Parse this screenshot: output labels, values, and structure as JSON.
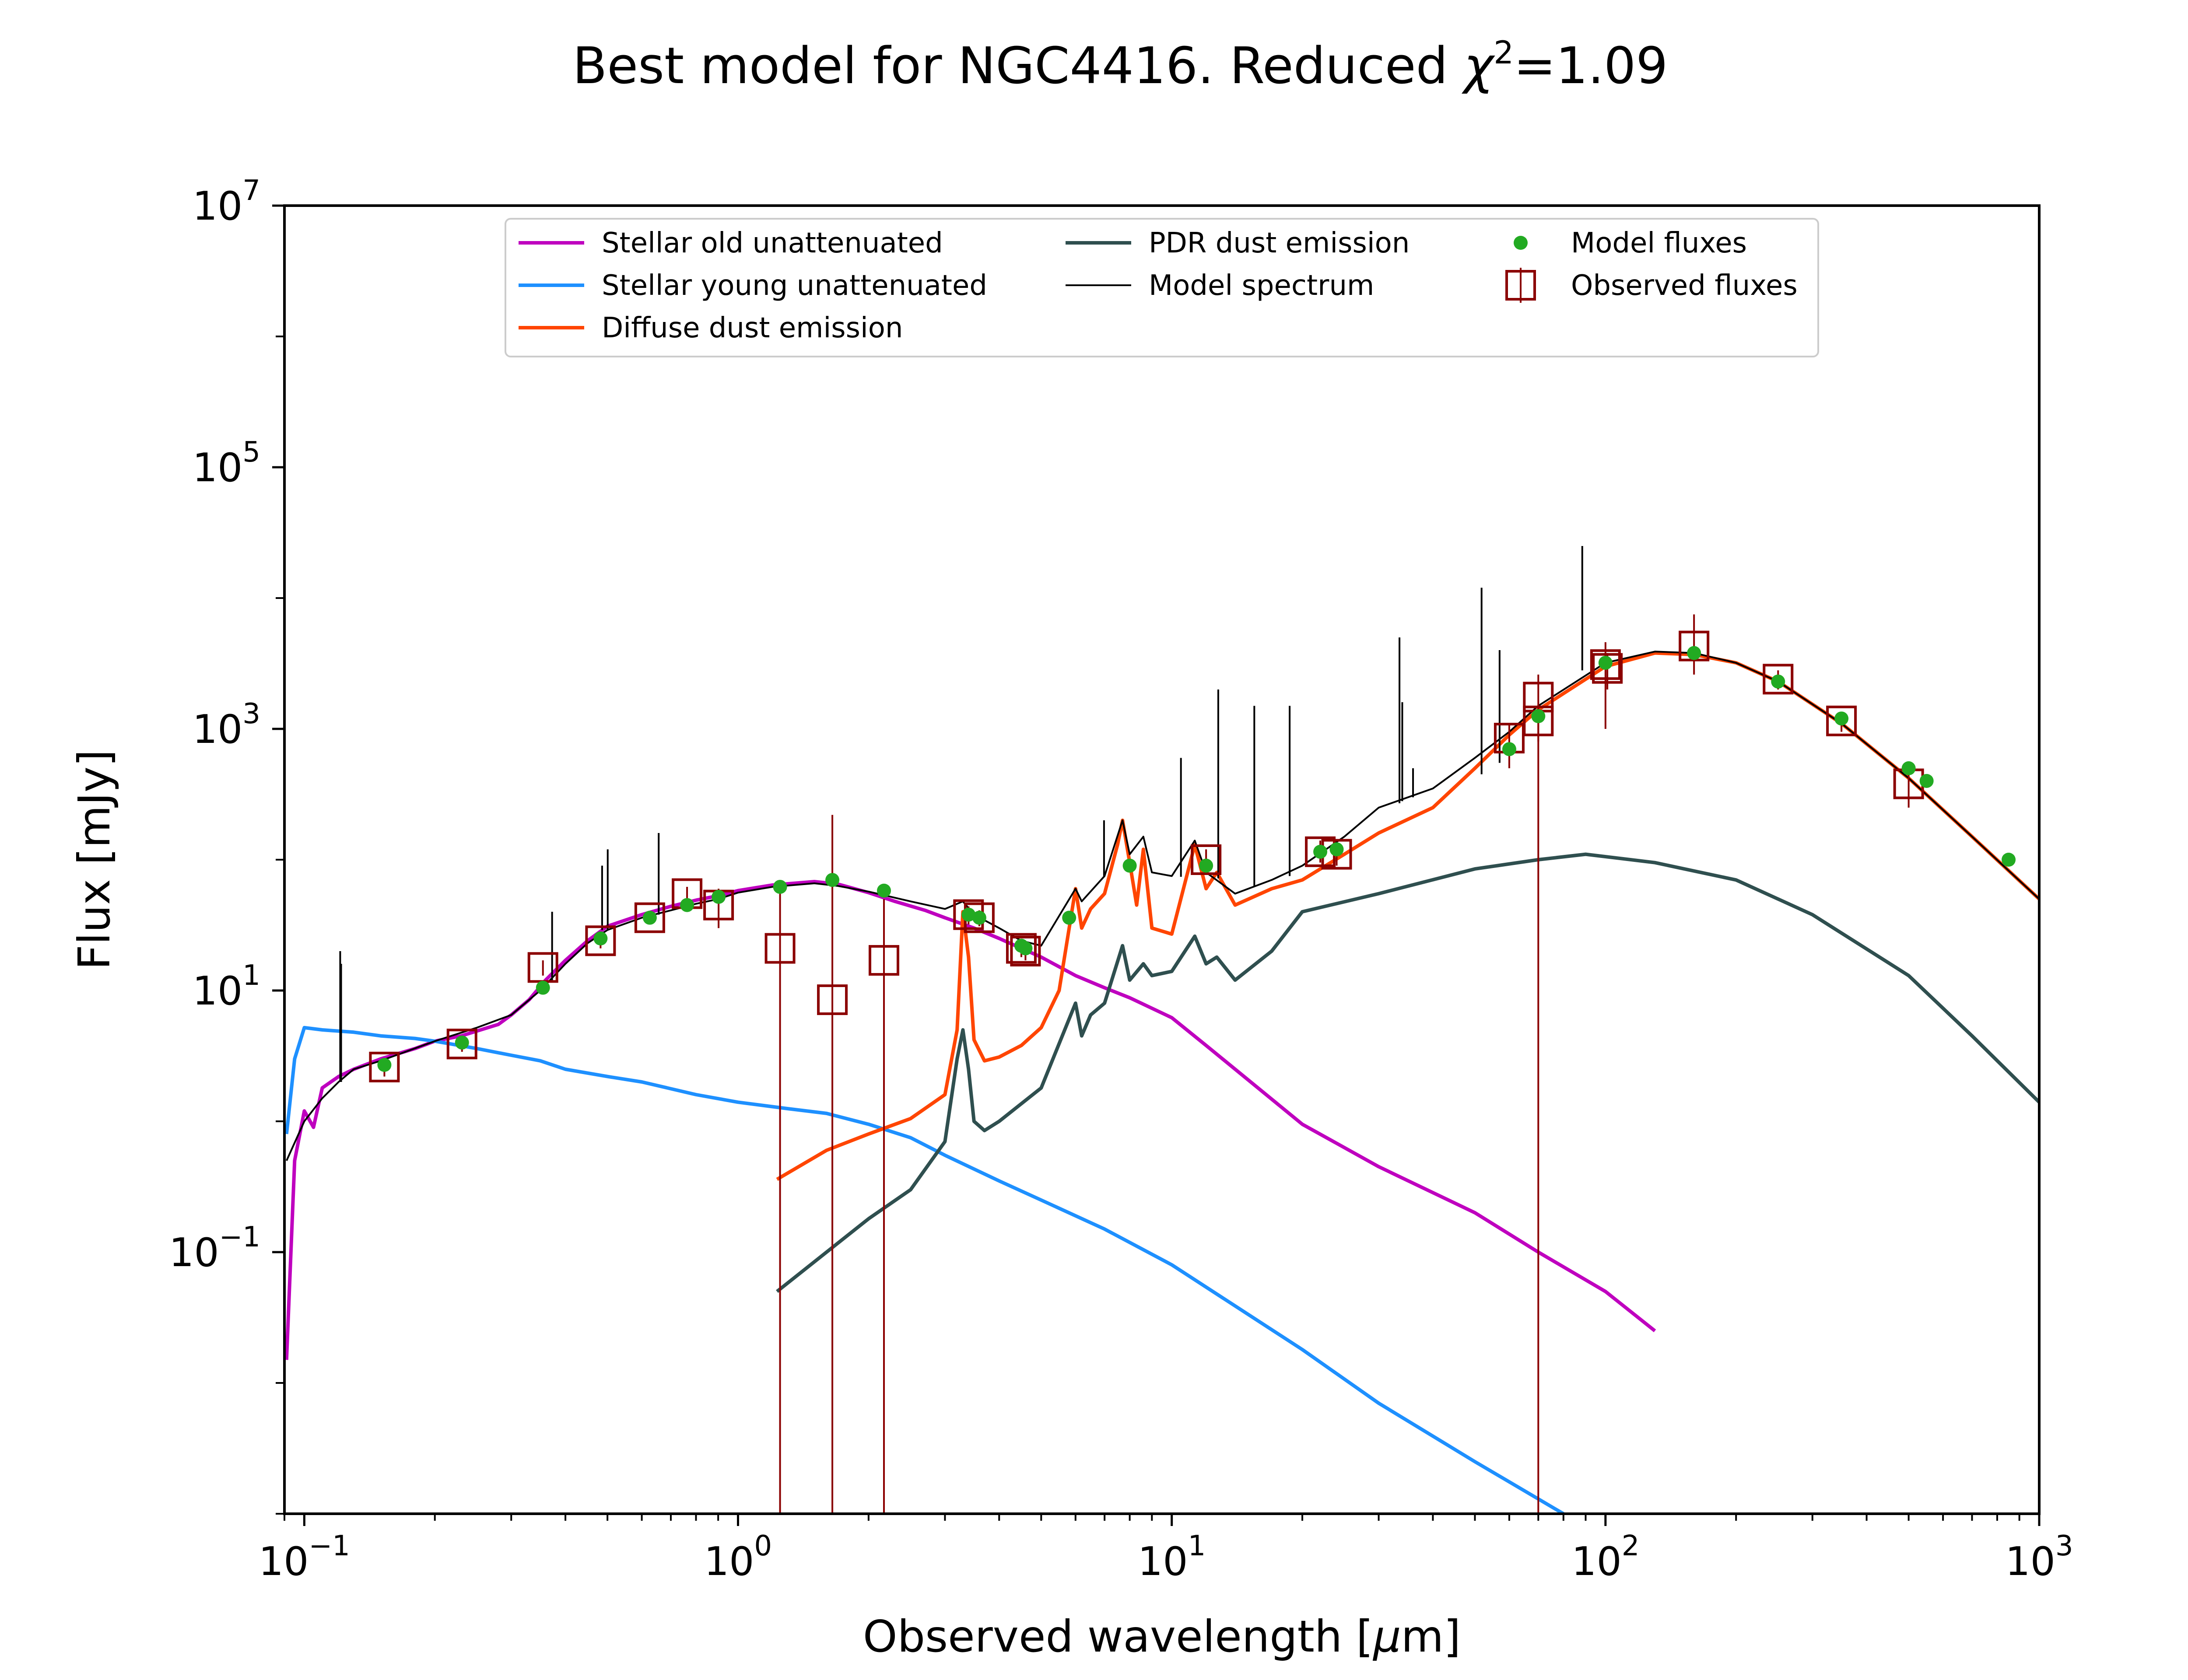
{
  "chart_data": {
    "type": "line",
    "title": {
      "prefix": "Best model for NGC4416. Reduced ",
      "chi": "χ",
      "sup": "2",
      "suffix": "=1.09"
    },
    "xlabel": {
      "prefix": "Observed wavelength [",
      "mu": "μ",
      "suffix": "m]"
    },
    "ylabel": "Flux [mJy]",
    "xscale": "log",
    "yscale": "log",
    "xlim": [
      0.09,
      1000
    ],
    "ylim": [
      0.001,
      10000000
    ],
    "x_ticks": [
      {
        "base": "10",
        "exp": "−1",
        "value": 0.1
      },
      {
        "base": "10",
        "exp": "0",
        "value": 1
      },
      {
        "base": "10",
        "exp": "1",
        "value": 10
      },
      {
        "base": "10",
        "exp": "2",
        "value": 100
      },
      {
        "base": "10",
        "exp": "3",
        "value": 1000
      }
    ],
    "y_ticks": [
      {
        "base": "10",
        "exp": "−1",
        "value": 0.1
      },
      {
        "base": "10",
        "exp": "1",
        "value": 10
      },
      {
        "base": "10",
        "exp": "3",
        "value": 1000
      },
      {
        "base": "10",
        "exp": "5",
        "value": 100000
      },
      {
        "base": "10",
        "exp": "7",
        "value": 10000000
      }
    ],
    "grid": false,
    "legend": {
      "placement": "top-center",
      "entries": [
        {
          "label": "Stellar old unattenuated",
          "color": "#bf00bf",
          "marker": "line"
        },
        {
          "label": "Stellar young unattenuated",
          "color": "#1e90ff",
          "marker": "line"
        },
        {
          "label": "Diffuse dust emission",
          "color": "#ff4500",
          "marker": "line"
        },
        {
          "label": "PDR dust emission",
          "color": "#2f4f4f",
          "marker": "line"
        },
        {
          "label": "Model spectrum",
          "color": "#000000",
          "marker": "thin-line"
        },
        {
          "label": "Model fluxes",
          "color": "#22aa22",
          "marker": "dot"
        },
        {
          "label": "Observed fluxes",
          "color": "#8b0000",
          "marker": "square"
        }
      ]
    },
    "series": [
      {
        "name": "Stellar old unattenuated",
        "color": "#bf00bf",
        "x": [
          0.091,
          0.095,
          0.1,
          0.105,
          0.11,
          0.12,
          0.13,
          0.15,
          0.18,
          0.2,
          0.23,
          0.28,
          0.3,
          0.33,
          0.36,
          0.4,
          0.45,
          0.5,
          0.6,
          0.7,
          0.8,
          0.9,
          1.0,
          1.2,
          1.5,
          1.7,
          2.0,
          2.3,
          2.7,
          3.0,
          3.5,
          4.0,
          5.0,
          6.0,
          7.0,
          8.0,
          10,
          12,
          20,
          30,
          50,
          70,
          100,
          130
        ],
        "y": [
          0.015,
          0.5,
          1.2,
          0.9,
          1.8,
          2.2,
          2.5,
          3.0,
          3.6,
          4.1,
          4.5,
          5.5,
          6.5,
          8.5,
          12,
          17,
          24,
          31,
          38,
          44,
          49,
          53,
          58,
          64,
          68,
          65,
          56,
          48,
          41,
          36,
          30,
          25,
          18,
          13,
          10.5,
          8.8,
          6.2,
          3.8,
          0.95,
          0.45,
          0.2,
          0.1,
          0.05,
          0.025
        ]
      },
      {
        "name": "Stellar young unattenuated",
        "color": "#1e90ff",
        "x": [
          0.091,
          0.095,
          0.1,
          0.11,
          0.13,
          0.15,
          0.18,
          0.2,
          0.25,
          0.3,
          0.35,
          0.4,
          0.5,
          0.6,
          0.8,
          1.0,
          1.3,
          1.6,
          2.0,
          2.5,
          3.0,
          4.0,
          5.0,
          7.0,
          10,
          20,
          30,
          50,
          80
        ],
        "y": [
          0.8,
          3.0,
          5.2,
          5.0,
          4.8,
          4.5,
          4.3,
          4.1,
          3.6,
          3.2,
          2.9,
          2.5,
          2.2,
          2.0,
          1.6,
          1.4,
          1.25,
          1.15,
          0.95,
          0.75,
          0.55,
          0.35,
          0.25,
          0.15,
          0.08,
          0.018,
          0.007,
          0.0025,
          0.001
        ]
      },
      {
        "name": "Diffuse dust emission",
        "color": "#ff4500",
        "x": [
          1.23,
          1.6,
          2.0,
          2.5,
          3.0,
          3.2,
          3.3,
          3.4,
          3.5,
          3.7,
          4.0,
          4.5,
          5.0,
          5.5,
          6.0,
          6.2,
          6.5,
          7.0,
          7.5,
          7.7,
          8.0,
          8.3,
          8.6,
          9.0,
          10,
          11.3,
          12,
          12.7,
          14,
          17,
          20,
          25,
          30,
          40,
          50,
          60,
          70,
          100,
          130,
          160,
          200,
          250,
          350,
          500,
          700,
          1000
        ],
        "y": [
          0.36,
          0.6,
          0.8,
          1.05,
          1.6,
          5.0,
          40,
          18,
          4.2,
          2.9,
          3.1,
          3.8,
          5.2,
          10,
          60,
          30,
          42,
          55,
          130,
          200,
          95,
          45,
          120,
          30,
          27,
          130,
          60,
          80,
          45,
          60,
          70,
          110,
          160,
          250,
          500,
          900,
          1400,
          3000,
          3800,
          3700,
          3200,
          2300,
          1100,
          420,
          150,
          50
        ]
      },
      {
        "name": "PDR dust emission",
        "color": "#2f4f4f",
        "x": [
          1.23,
          1.6,
          2.0,
          2.5,
          3.0,
          3.2,
          3.3,
          3.4,
          3.5,
          3.7,
          4.0,
          5.0,
          6.0,
          6.2,
          6.5,
          7.0,
          7.7,
          8.0,
          8.6,
          9.0,
          10,
          11.3,
          12,
          12.7,
          14,
          17,
          20,
          30,
          50,
          70,
          90,
          130,
          200,
          300,
          500,
          700,
          1000
        ],
        "y": [
          0.05,
          0.1,
          0.18,
          0.3,
          0.7,
          3.0,
          5.0,
          2.5,
          1.0,
          0.85,
          1.0,
          1.8,
          8,
          4.5,
          6.5,
          8,
          22,
          12,
          16,
          13,
          14,
          26,
          16,
          18,
          12,
          20,
          40,
          55,
          85,
          100,
          110,
          95,
          70,
          38,
          13,
          4.5,
          1.4
        ]
      },
      {
        "name": "Model spectrum",
        "color": "#000000",
        "x": [
          0.091,
          0.1,
          0.11,
          0.12,
          0.13,
          0.15,
          0.2,
          0.25,
          0.3,
          0.35,
          0.4,
          0.45,
          0.5,
          0.6,
          0.7,
          0.8,
          0.9,
          1.0,
          1.2,
          1.5,
          1.7,
          2.0,
          2.5,
          3.0,
          3.3,
          3.5,
          4.0,
          4.5,
          5.0,
          6.0,
          6.2,
          7.0,
          7.7,
          8.0,
          8.6,
          9.0,
          10,
          11.3,
          12,
          14,
          17,
          20,
          25,
          30,
          40,
          50,
          60,
          70,
          100,
          130,
          160,
          200,
          250,
          350,
          500,
          700,
          1000
        ],
        "y": [
          0.5,
          1.0,
          1.5,
          2.0,
          2.5,
          2.9,
          4.1,
          5.2,
          6.5,
          10,
          16,
          23,
          29,
          36,
          41,
          46,
          50,
          56,
          62,
          66,
          63,
          57,
          48,
          42,
          48,
          38,
          30,
          24,
          22,
          60,
          48,
          75,
          200,
          110,
          150,
          80,
          75,
          140,
          80,
          55,
          70,
          90,
          150,
          250,
          350,
          600,
          950,
          1500,
          3200,
          3900,
          3800,
          3200,
          2300,
          1100,
          420,
          150,
          50
        ]
      }
    ],
    "model_spectrum_lines": [
      {
        "x": 0.121,
        "y_base": 2.0,
        "y_top": 20
      },
      {
        "x": 0.1216,
        "y_base": 2.0,
        "y_top": 16
      },
      {
        "x": 0.5007,
        "y_base": 29,
        "y_top": 120
      },
      {
        "x": 0.6563,
        "y_base": 38,
        "y_top": 160
      },
      {
        "x": 0.486,
        "y_base": 29,
        "y_top": 90
      },
      {
        "x": 0.3727,
        "y_base": 12,
        "y_top": 40
      },
      {
        "x": 34,
        "y_base": 280,
        "y_top": 1600
      },
      {
        "x": 51.8,
        "y_base": 450,
        "y_top": 12000
      },
      {
        "x": 57,
        "y_base": 550,
        "y_top": 4000
      },
      {
        "x": 88.4,
        "y_base": 2800,
        "y_top": 25000
      },
      {
        "x": 15.5,
        "y_base": 62,
        "y_top": 1500
      },
      {
        "x": 18.7,
        "y_base": 75,
        "y_top": 1500
      },
      {
        "x": 12.8,
        "y_base": 72,
        "y_top": 2000
      },
      {
        "x": 10.5,
        "y_base": 74,
        "y_top": 600
      },
      {
        "x": 6.98,
        "y_base": 75,
        "y_top": 200
      },
      {
        "x": 33.5,
        "y_base": 270,
        "y_top": 5000
      },
      {
        "x": 36,
        "y_base": 300,
        "y_top": 500
      }
    ],
    "model_fluxes": {
      "color": "#22aa22",
      "x": [
        0.153,
        0.231,
        0.355,
        0.482,
        0.626,
        0.763,
        0.902,
        1.25,
        1.65,
        2.17,
        3.4,
        3.6,
        4.5,
        4.6,
        5.8,
        8.0,
        12,
        22,
        24,
        60,
        70,
        100,
        160,
        250,
        350,
        500,
        550,
        850
      ],
      "y": [
        2.7,
        4.0,
        10.5,
        25,
        36,
        45,
        52,
        62,
        70,
        58,
        38,
        36,
        22,
        21,
        36,
        90,
        90,
        115,
        120,
        700,
        1250,
        3200,
        3800,
        2300,
        1200,
        500,
        400,
        100
      ]
    },
    "observed_fluxes": {
      "color": "#8b0000",
      "points": [
        {
          "x": 0.153,
          "y": 2.6,
          "err_lo": 2.2,
          "err_hi": 3.0
        },
        {
          "x": 0.231,
          "y": 3.9,
          "err_lo": 3.4,
          "err_hi": 4.4
        },
        {
          "x": 0.355,
          "y": 15,
          "err_lo": 13,
          "err_hi": 17
        },
        {
          "x": 0.482,
          "y": 24,
          "err_lo": 21,
          "err_hi": 27
        },
        {
          "x": 0.626,
          "y": 36,
          "err_lo": 32,
          "err_hi": 40
        },
        {
          "x": 0.763,
          "y": 55,
          "err_lo": 48,
          "err_hi": 62
        },
        {
          "x": 0.902,
          "y": 45,
          "err_lo": 30,
          "err_hi": 60
        },
        {
          "x": 1.25,
          "y": 21,
          "err_lo": 0.001,
          "err_hi": 60
        },
        {
          "x": 1.65,
          "y": 8.5,
          "err_lo": 0.001,
          "err_hi": 220
        },
        {
          "x": 2.17,
          "y": 17,
          "err_lo": 0.001,
          "err_hi": 50
        },
        {
          "x": 3.4,
          "y": 38,
          "err_lo": 32,
          "err_hi": 44
        },
        {
          "x": 3.6,
          "y": 36,
          "err_lo": 31,
          "err_hi": 41
        },
        {
          "x": 4.5,
          "y": 21,
          "err_lo": 18,
          "err_hi": 24
        },
        {
          "x": 4.6,
          "y": 20,
          "err_lo": 17,
          "err_hi": 23
        },
        {
          "x": 12,
          "y": 100,
          "err_lo": 85,
          "err_hi": 120
        },
        {
          "x": 22,
          "y": 115,
          "err_lo": 95,
          "err_hi": 140
        },
        {
          "x": 24,
          "y": 110,
          "err_lo": 90,
          "err_hi": 135
        },
        {
          "x": 60,
          "y": 850,
          "err_lo": 500,
          "err_hi": 1100
        },
        {
          "x": 70,
          "y": 1750,
          "err_lo": 0.001,
          "err_hi": 2600
        },
        {
          "x": 70,
          "y": 1150,
          "err_lo": 800,
          "err_hi": 1500
        },
        {
          "x": 100,
          "y": 3100,
          "err_lo": 1000,
          "err_hi": 4600
        },
        {
          "x": 101,
          "y": 2900,
          "err_lo": 2000,
          "err_hi": 3800
        },
        {
          "x": 160,
          "y": 4300,
          "err_lo": 2600,
          "err_hi": 7500
        },
        {
          "x": 250,
          "y": 2400,
          "err_lo": 2000,
          "err_hi": 2800
        },
        {
          "x": 350,
          "y": 1150,
          "err_lo": 950,
          "err_hi": 1350
        },
        {
          "x": 500,
          "y": 380,
          "err_lo": 250,
          "err_hi": 520
        }
      ]
    }
  }
}
